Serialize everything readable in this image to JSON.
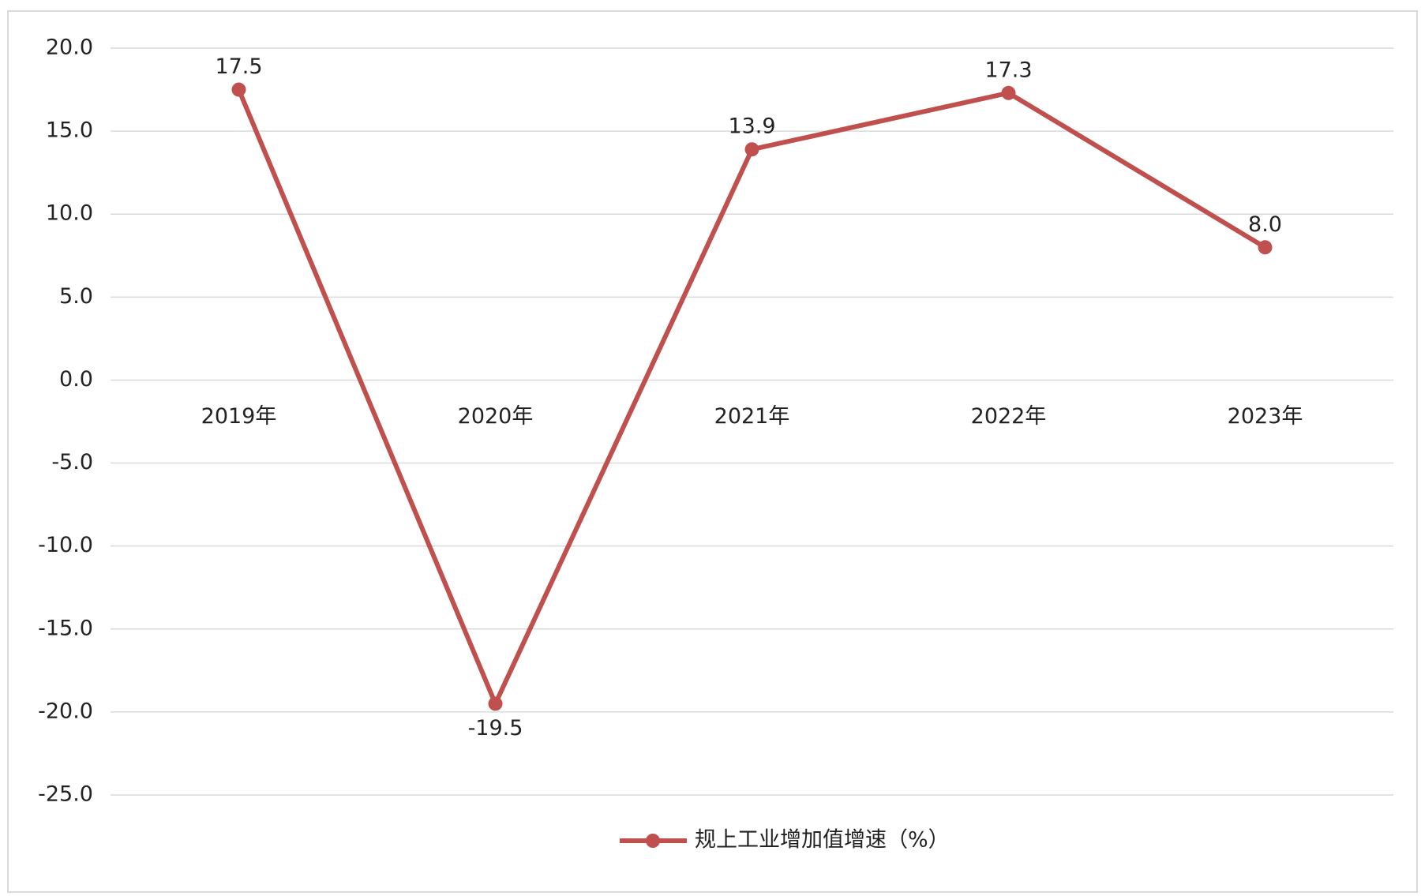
{
  "chart_data": {
    "type": "line",
    "categories": [
      "2019年",
      "2020年",
      "2021年",
      "2022年",
      "2023年"
    ],
    "series": [
      {
        "name": "规上工业增加值增速（%）",
        "color": "#c0504d",
        "values": [
          17.5,
          -19.5,
          13.9,
          17.3,
          8.0
        ],
        "value_labels": [
          "17.5",
          "-19.5",
          "13.9",
          "17.3",
          "8.0"
        ]
      }
    ],
    "ylim": [
      -25,
      20
    ],
    "yticks": [
      {
        "value": -25,
        "label": "-25.0"
      },
      {
        "value": -20,
        "label": "-20.0"
      },
      {
        "value": -15,
        "label": "-15.0"
      },
      {
        "value": -10,
        "label": "-10.0"
      },
      {
        "value": -5,
        "label": "-5.0"
      },
      {
        "value": 0,
        "label": "0.0"
      },
      {
        "value": 5,
        "label": "5.0"
      },
      {
        "value": 10,
        "label": "10.0"
      },
      {
        "value": 15,
        "label": "15.0"
      },
      {
        "value": 20,
        "label": "20.0"
      }
    ],
    "grid": true,
    "legend": "bottom"
  }
}
